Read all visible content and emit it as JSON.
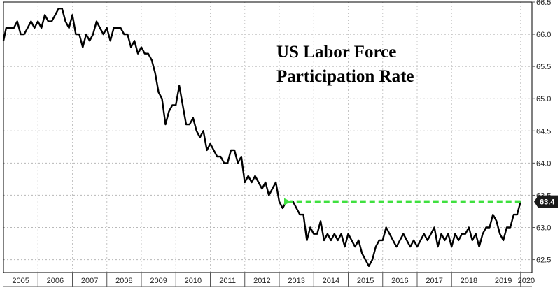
{
  "chart_data": {
    "type": "line",
    "title_lines": [
      "US Labor Force",
      "Participation Rate"
    ],
    "xlabel": "",
    "ylabel": "",
    "ylim": [
      62.3,
      66.5
    ],
    "xlim": [
      2005.0,
      2020.33
    ],
    "yticks": [
      62.5,
      63.0,
      63.5,
      64.0,
      64.5,
      65.0,
      65.5,
      66.0,
      66.5
    ],
    "ytick_labels": [
      "62.5",
      "63.0",
      "63.5",
      "64.0",
      "64.5",
      "65.0",
      "65.5",
      "66.0",
      "66.5"
    ],
    "x_year_labels": [
      "2005",
      "2006",
      "2007",
      "2008",
      "2009",
      "2010",
      "2011",
      "2012",
      "2013",
      "2014",
      "2015",
      "2016",
      "2017",
      "2018",
      "2019",
      "2020"
    ],
    "grid": true,
    "series": [
      {
        "color": "#000000",
        "x": [
          2005.0,
          2005.08,
          2005.2,
          2005.3,
          2005.4,
          2005.5,
          2005.6,
          2005.7,
          2005.8,
          2005.9,
          2006.0,
          2006.1,
          2006.2,
          2006.3,
          2006.4,
          2006.5,
          2006.6,
          2006.7,
          2006.8,
          2006.9,
          2007.0,
          2007.1,
          2007.2,
          2007.3,
          2007.4,
          2007.5,
          2007.6,
          2007.7,
          2007.8,
          2007.9,
          2008.0,
          2008.1,
          2008.2,
          2008.3,
          2008.4,
          2008.5,
          2008.6,
          2008.7,
          2008.8,
          2008.9,
          2009.0,
          2009.1,
          2009.2,
          2009.3,
          2009.4,
          2009.5,
          2009.6,
          2009.7,
          2009.8,
          2009.9,
          2010.0,
          2010.1,
          2010.2,
          2010.3,
          2010.4,
          2010.5,
          2010.6,
          2010.7,
          2010.8,
          2010.9,
          2011.0,
          2011.1,
          2011.2,
          2011.3,
          2011.4,
          2011.5,
          2011.6,
          2011.7,
          2011.8,
          2011.9,
          2012.0,
          2012.1,
          2012.2,
          2012.3,
          2012.4,
          2012.5,
          2012.6,
          2012.7,
          2012.8,
          2012.9,
          2013.0,
          2013.1,
          2013.2,
          2013.3,
          2013.4,
          2013.5,
          2013.6,
          2013.7,
          2013.8,
          2013.9,
          2014.0,
          2014.1,
          2014.2,
          2014.3,
          2014.4,
          2014.5,
          2014.6,
          2014.7,
          2014.8,
          2014.9,
          2015.0,
          2015.1,
          2015.2,
          2015.3,
          2015.4,
          2015.5,
          2015.6,
          2015.7,
          2015.8,
          2015.9,
          2016.0,
          2016.1,
          2016.2,
          2016.3,
          2016.4,
          2016.5,
          2016.6,
          2016.7,
          2016.8,
          2016.9,
          2017.0,
          2017.1,
          2017.2,
          2017.3,
          2017.4,
          2017.5,
          2017.6,
          2017.7,
          2017.8,
          2017.9,
          2018.0,
          2018.1,
          2018.2,
          2018.3,
          2018.4,
          2018.5,
          2018.6,
          2018.7,
          2018.8,
          2018.9,
          2019.0,
          2019.1,
          2019.2,
          2019.3,
          2019.4,
          2019.5,
          2019.6,
          2019.7,
          2019.8,
          2019.9,
          2020.0
        ],
        "values": [
          65.9,
          66.1,
          66.1,
          66.1,
          66.2,
          66.0,
          66.0,
          66.1,
          66.2,
          66.1,
          66.2,
          66.1,
          66.3,
          66.2,
          66.2,
          66.3,
          66.4,
          66.4,
          66.2,
          66.1,
          66.3,
          66.0,
          66.0,
          65.8,
          66.0,
          65.9,
          66.0,
          66.2,
          66.1,
          66.0,
          66.1,
          65.9,
          66.1,
          66.1,
          66.1,
          66.0,
          66.0,
          65.8,
          65.9,
          65.7,
          65.8,
          65.7,
          65.7,
          65.6,
          65.4,
          65.1,
          65.0,
          64.6,
          64.8,
          64.9,
          64.9,
          65.2,
          64.9,
          64.6,
          64.6,
          64.7,
          64.5,
          64.4,
          64.5,
          64.2,
          64.3,
          64.2,
          64.1,
          64.1,
          64.0,
          64.0,
          64.2,
          64.2,
          64.0,
          64.1,
          63.7,
          63.8,
          63.7,
          63.8,
          63.7,
          63.6,
          63.7,
          63.5,
          63.6,
          63.7,
          63.4,
          63.3,
          63.4,
          63.4,
          63.4,
          63.3,
          63.2,
          63.2,
          62.8,
          63.0,
          62.9,
          62.9,
          63.1,
          62.8,
          62.9,
          62.8,
          62.9,
          62.8,
          62.9,
          62.7,
          62.9,
          62.8,
          62.7,
          62.8,
          62.6,
          62.5,
          62.4,
          62.5,
          62.7,
          62.8,
          62.8,
          63.0,
          62.9,
          62.8,
          62.7,
          62.8,
          62.9,
          62.8,
          62.7,
          62.8,
          62.7,
          62.8,
          62.9,
          62.8,
          62.9,
          63.0,
          62.7,
          62.9,
          62.8,
          62.9,
          62.7,
          62.9,
          62.8,
          62.9,
          62.9,
          63.0,
          62.8,
          62.9,
          62.7,
          62.9,
          63.0,
          63.0,
          63.2,
          63.1,
          62.9,
          62.8,
          63.0,
          63.0,
          63.2,
          63.2,
          63.4
        ]
      }
    ],
    "annotation": {
      "type": "dashed-arrow",
      "color": "#3fe03f",
      "from": [
        2020.0,
        63.4
      ],
      "to": [
        2013.1,
        63.4
      ]
    },
    "end_label": {
      "text": "63.4",
      "value": 63.4,
      "background": "#1a1a1a"
    }
  }
}
